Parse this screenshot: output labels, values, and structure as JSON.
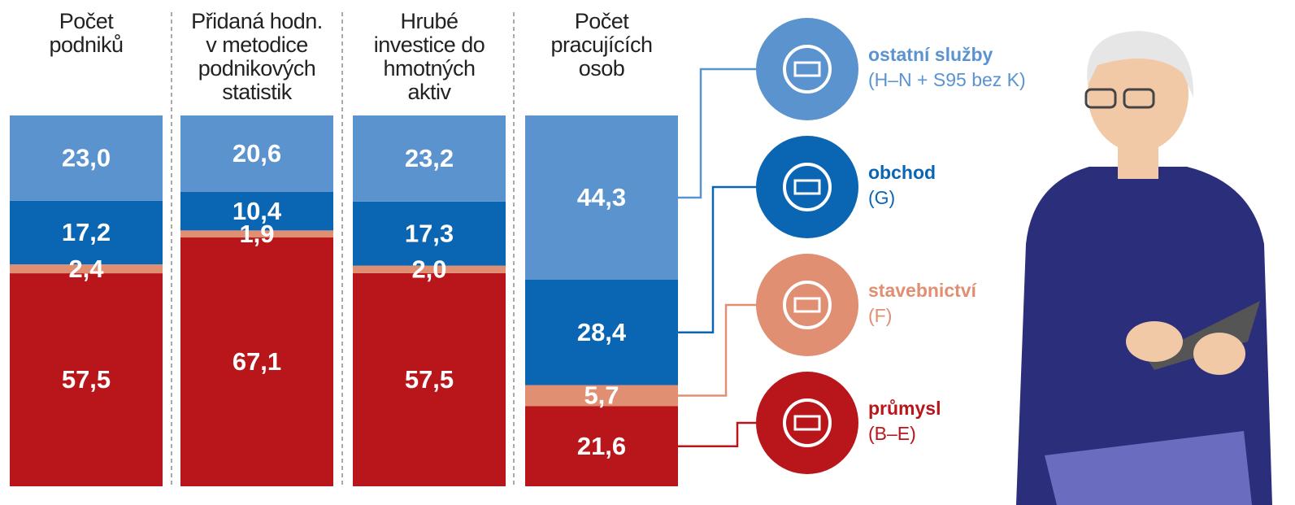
{
  "chart_data": {
    "type": "bar",
    "stacked": true,
    "categories": [
      "Počet\npodniků",
      "Přidaná hodn.\nv metodice\npodnikových\nstatistik",
      "Hrubé\ninvestice do\nhmotných\naktiv",
      "Počet\npracujících\nosob"
    ],
    "series": [
      {
        "name": "průmysl",
        "code": "(B–E)",
        "color": "#b8161a",
        "values": [
          57.5,
          67.1,
          57.5,
          21.6
        ],
        "value_labels": [
          "57,5",
          "67,1",
          "57,5",
          "21,6"
        ]
      },
      {
        "name": "stavebnictví",
        "code": "(F)",
        "color": "#e08f73",
        "values": [
          2.4,
          1.9,
          2.0,
          5.7
        ],
        "value_labels": [
          "2,4",
          "1,9",
          "2,0",
          "5,7"
        ]
      },
      {
        "name": "obchod",
        "code": "(G)",
        "color": "#0a66b3",
        "values": [
          17.2,
          10.4,
          17.3,
          28.4
        ],
        "value_labels": [
          "17,2",
          "10,4",
          "17,3",
          "28,4"
        ]
      },
      {
        "name": "ostatní služby",
        "code": "(H–N + S95 bez K)",
        "color": "#5b93cf",
        "values": [
          23.0,
          20.6,
          23.2,
          44.3
        ],
        "value_labels": [
          "23,0",
          "20,6",
          "23,2",
          "44,3"
        ]
      }
    ]
  }
}
